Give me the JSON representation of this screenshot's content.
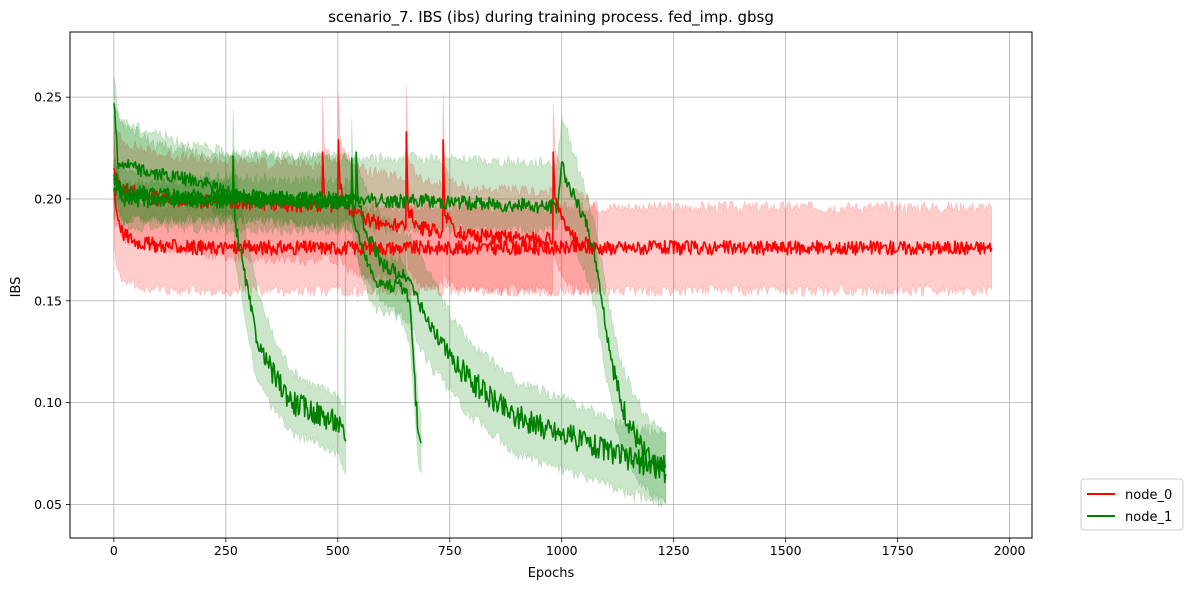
{
  "chart_data": {
    "type": "line",
    "title": "scenario_7. IBS (ibs) during training process. fed_imp. gbsg",
    "xlabel": "Epochs",
    "ylabel": "IBS",
    "xlim": [
      -98,
      2050
    ],
    "ylim": [
      0.0335,
      0.282
    ],
    "xticks": [
      0,
      250,
      500,
      750,
      1000,
      1250,
      1500,
      1750,
      2000
    ],
    "xtick_labels": [
      "0",
      "250",
      "500",
      "750",
      "1000",
      "1250",
      "1500",
      "1750",
      "2000"
    ],
    "yticks": [
      0.05,
      0.1,
      0.15,
      0.2,
      0.25
    ],
    "ytick_labels": [
      "0.05",
      "0.10",
      "0.15",
      "0.20",
      "0.25"
    ],
    "grid": true,
    "legend_position": "outside-lower-right",
    "series": [
      {
        "name": "node_0",
        "color": "#ff0000",
        "band_color": "#ff0000",
        "runs": [
          {
            "x": [
              0,
              5,
              20,
              50,
              100,
              200,
              300,
              400,
              500,
              700,
              1000,
              1300,
              1600,
              1960
            ],
            "y": [
              0.205,
              0.195,
              0.183,
              0.179,
              0.177,
              0.176,
              0.176,
              0.176,
              0.176,
              0.176,
              0.176,
              0.176,
              0.176,
              0.176
            ],
            "lower": [
              0.18,
              0.168,
              0.16,
              0.157,
              0.156,
              0.155,
              0.155,
              0.155,
              0.155,
              0.155,
              0.155,
              0.155,
              0.155,
              0.155
            ],
            "upper": [
              0.23,
              0.214,
              0.203,
              0.199,
              0.197,
              0.196,
              0.196,
              0.196,
              0.196,
              0.196,
              0.196,
              0.196,
              0.196,
              0.196
            ]
          },
          {
            "x": [
              0,
              20,
              100,
              200,
              300,
              400,
              465,
              466,
              470,
              490,
              500,
              501,
              505,
              520,
              560,
              600,
              652,
              653,
              657,
              680,
              700,
              734,
              735,
              739,
              760,
              800,
              900,
              980,
              981,
              985,
              1000,
              1020,
              1050,
              1080
            ],
            "y": [
              0.215,
              0.205,
              0.2,
              0.199,
              0.198,
              0.197,
              0.197,
              0.223,
              0.2,
              0.196,
              0.195,
              0.229,
              0.205,
              0.196,
              0.19,
              0.188,
              0.186,
              0.233,
              0.195,
              0.186,
              0.185,
              0.184,
              0.229,
              0.192,
              0.184,
              0.182,
              0.181,
              0.18,
              0.223,
              0.2,
              0.19,
              0.182,
              0.178,
              0.176
            ],
            "lower": [
              0.19,
              0.18,
              0.175,
              0.173,
              0.171,
              0.17,
              0.17,
              0.19,
              0.173,
              0.168,
              0.167,
              0.185,
              0.172,
              0.166,
              0.163,
              0.161,
              0.159,
              0.19,
              0.165,
              0.159,
              0.158,
              0.157,
              0.19,
              0.162,
              0.157,
              0.156,
              0.155,
              0.155,
              0.185,
              0.17,
              0.162,
              0.157,
              0.155,
              0.155
            ],
            "upper": [
              0.235,
              0.228,
              0.222,
              0.219,
              0.218,
              0.217,
              0.217,
              0.25,
              0.225,
              0.219,
              0.218,
              0.252,
              0.23,
              0.22,
              0.214,
              0.212,
              0.21,
              0.256,
              0.22,
              0.21,
              0.208,
              0.207,
              0.252,
              0.216,
              0.207,
              0.205,
              0.204,
              0.203,
              0.247,
              0.225,
              0.213,
              0.205,
              0.2,
              0.197
            ]
          }
        ]
      },
      {
        "name": "node_1",
        "color": "#008000",
        "band_color": "#008000",
        "runs": [
          {
            "x": [
              0,
              20,
              100,
              200,
              265,
              266,
              270,
              290,
              320,
              360,
              400,
              450,
              500,
              515,
              518
            ],
            "y": [
              0.21,
              0.2,
              0.199,
              0.199,
              0.199,
              0.221,
              0.19,
              0.165,
              0.13,
              0.112,
              0.1,
              0.095,
              0.09,
              0.082,
              0.081
            ],
            "lower": [
              0.2,
              0.19,
              0.19,
              0.19,
              0.19,
              0.2,
              0.17,
              0.145,
              0.11,
              0.095,
              0.085,
              0.08,
              0.075,
              0.066,
              0.065
            ],
            "upper": [
              0.218,
              0.208,
              0.208,
              0.208,
              0.208,
              0.244,
              0.215,
              0.19,
              0.155,
              0.13,
              0.115,
              0.108,
              0.104,
              0.097,
              0.22
            ]
          },
          {
            "x": [
              0,
              20,
              100,
              200,
              300,
              400,
              530,
              531,
              535,
              560,
              580,
              600,
              640,
              660,
              680,
              686
            ],
            "y": [
              0.212,
              0.205,
              0.202,
              0.201,
              0.2,
              0.199,
              0.198,
              0.22,
              0.19,
              0.172,
              0.161,
              0.158,
              0.157,
              0.15,
              0.085,
              0.08
            ],
            "lower": [
              0.2,
              0.19,
              0.19,
              0.19,
              0.19,
              0.189,
              0.188,
              0.2,
              0.175,
              0.158,
              0.147,
              0.144,
              0.142,
              0.13,
              0.07,
              0.065
            ],
            "upper": [
              0.22,
              0.215,
              0.212,
              0.211,
              0.21,
              0.209,
              0.208,
              0.24,
              0.205,
              0.186,
              0.175,
              0.172,
              0.171,
              0.16,
              0.1,
              0.095
            ]
          },
          {
            "x": [
              0,
              20,
              100,
              200,
              300,
              400,
              540,
              541,
              545,
              560,
              600,
              660,
              700,
              760,
              800,
              900,
              1000,
              1100,
              1150,
              1232
            ],
            "y": [
              0.205,
              0.202,
              0.2,
              0.2,
              0.199,
              0.199,
              0.198,
              0.223,
              0.2,
              0.185,
              0.168,
              0.16,
              0.14,
              0.12,
              0.11,
              0.093,
              0.085,
              0.077,
              0.072,
              0.068
            ],
            "lower": [
              0.19,
              0.187,
              0.186,
              0.186,
              0.185,
              0.185,
              0.185,
              0.2,
              0.17,
              0.16,
              0.15,
              0.14,
              0.12,
              0.103,
              0.093,
              0.075,
              0.067,
              0.06,
              0.055,
              0.05
            ],
            "upper": [
              0.245,
              0.237,
              0.226,
              0.222,
              0.221,
              0.221,
              0.22,
              0.22,
              0.218,
              0.205,
              0.19,
              0.182,
              0.165,
              0.14,
              0.128,
              0.11,
              0.102,
              0.093,
              0.088,
              0.085
            ]
          },
          {
            "x": [
              0,
              10,
              20,
              50,
              100,
              150,
              200,
              250,
              300,
              400,
              500,
              600,
              700,
              800,
              900,
              990,
              1000,
              1010,
              1030,
              1060,
              1080,
              1100,
              1130,
              1170,
              1200,
              1232
            ],
            "y": [
              0.247,
              0.215,
              0.218,
              0.215,
              0.212,
              0.21,
              0.208,
              0.204,
              0.202,
              0.2,
              0.2,
              0.199,
              0.199,
              0.198,
              0.197,
              0.196,
              0.218,
              0.21,
              0.2,
              0.185,
              0.165,
              0.135,
              0.1,
              0.08,
              0.07,
              0.065
            ],
            "lower": [
              0.23,
              0.2,
              0.2,
              0.2,
              0.2,
              0.198,
              0.196,
              0.192,
              0.19,
              0.188,
              0.187,
              0.186,
              0.186,
              0.185,
              0.185,
              0.185,
              0.19,
              0.185,
              0.175,
              0.16,
              0.14,
              0.11,
              0.08,
              0.062,
              0.055,
              0.05
            ],
            "upper": [
              0.26,
              0.24,
              0.238,
              0.235,
              0.232,
              0.228,
              0.225,
              0.223,
              0.222,
              0.221,
              0.22,
              0.22,
              0.22,
              0.219,
              0.218,
              0.218,
              0.24,
              0.235,
              0.22,
              0.2,
              0.18,
              0.155,
              0.12,
              0.1,
              0.09,
              0.085
            ]
          }
        ]
      }
    ]
  }
}
